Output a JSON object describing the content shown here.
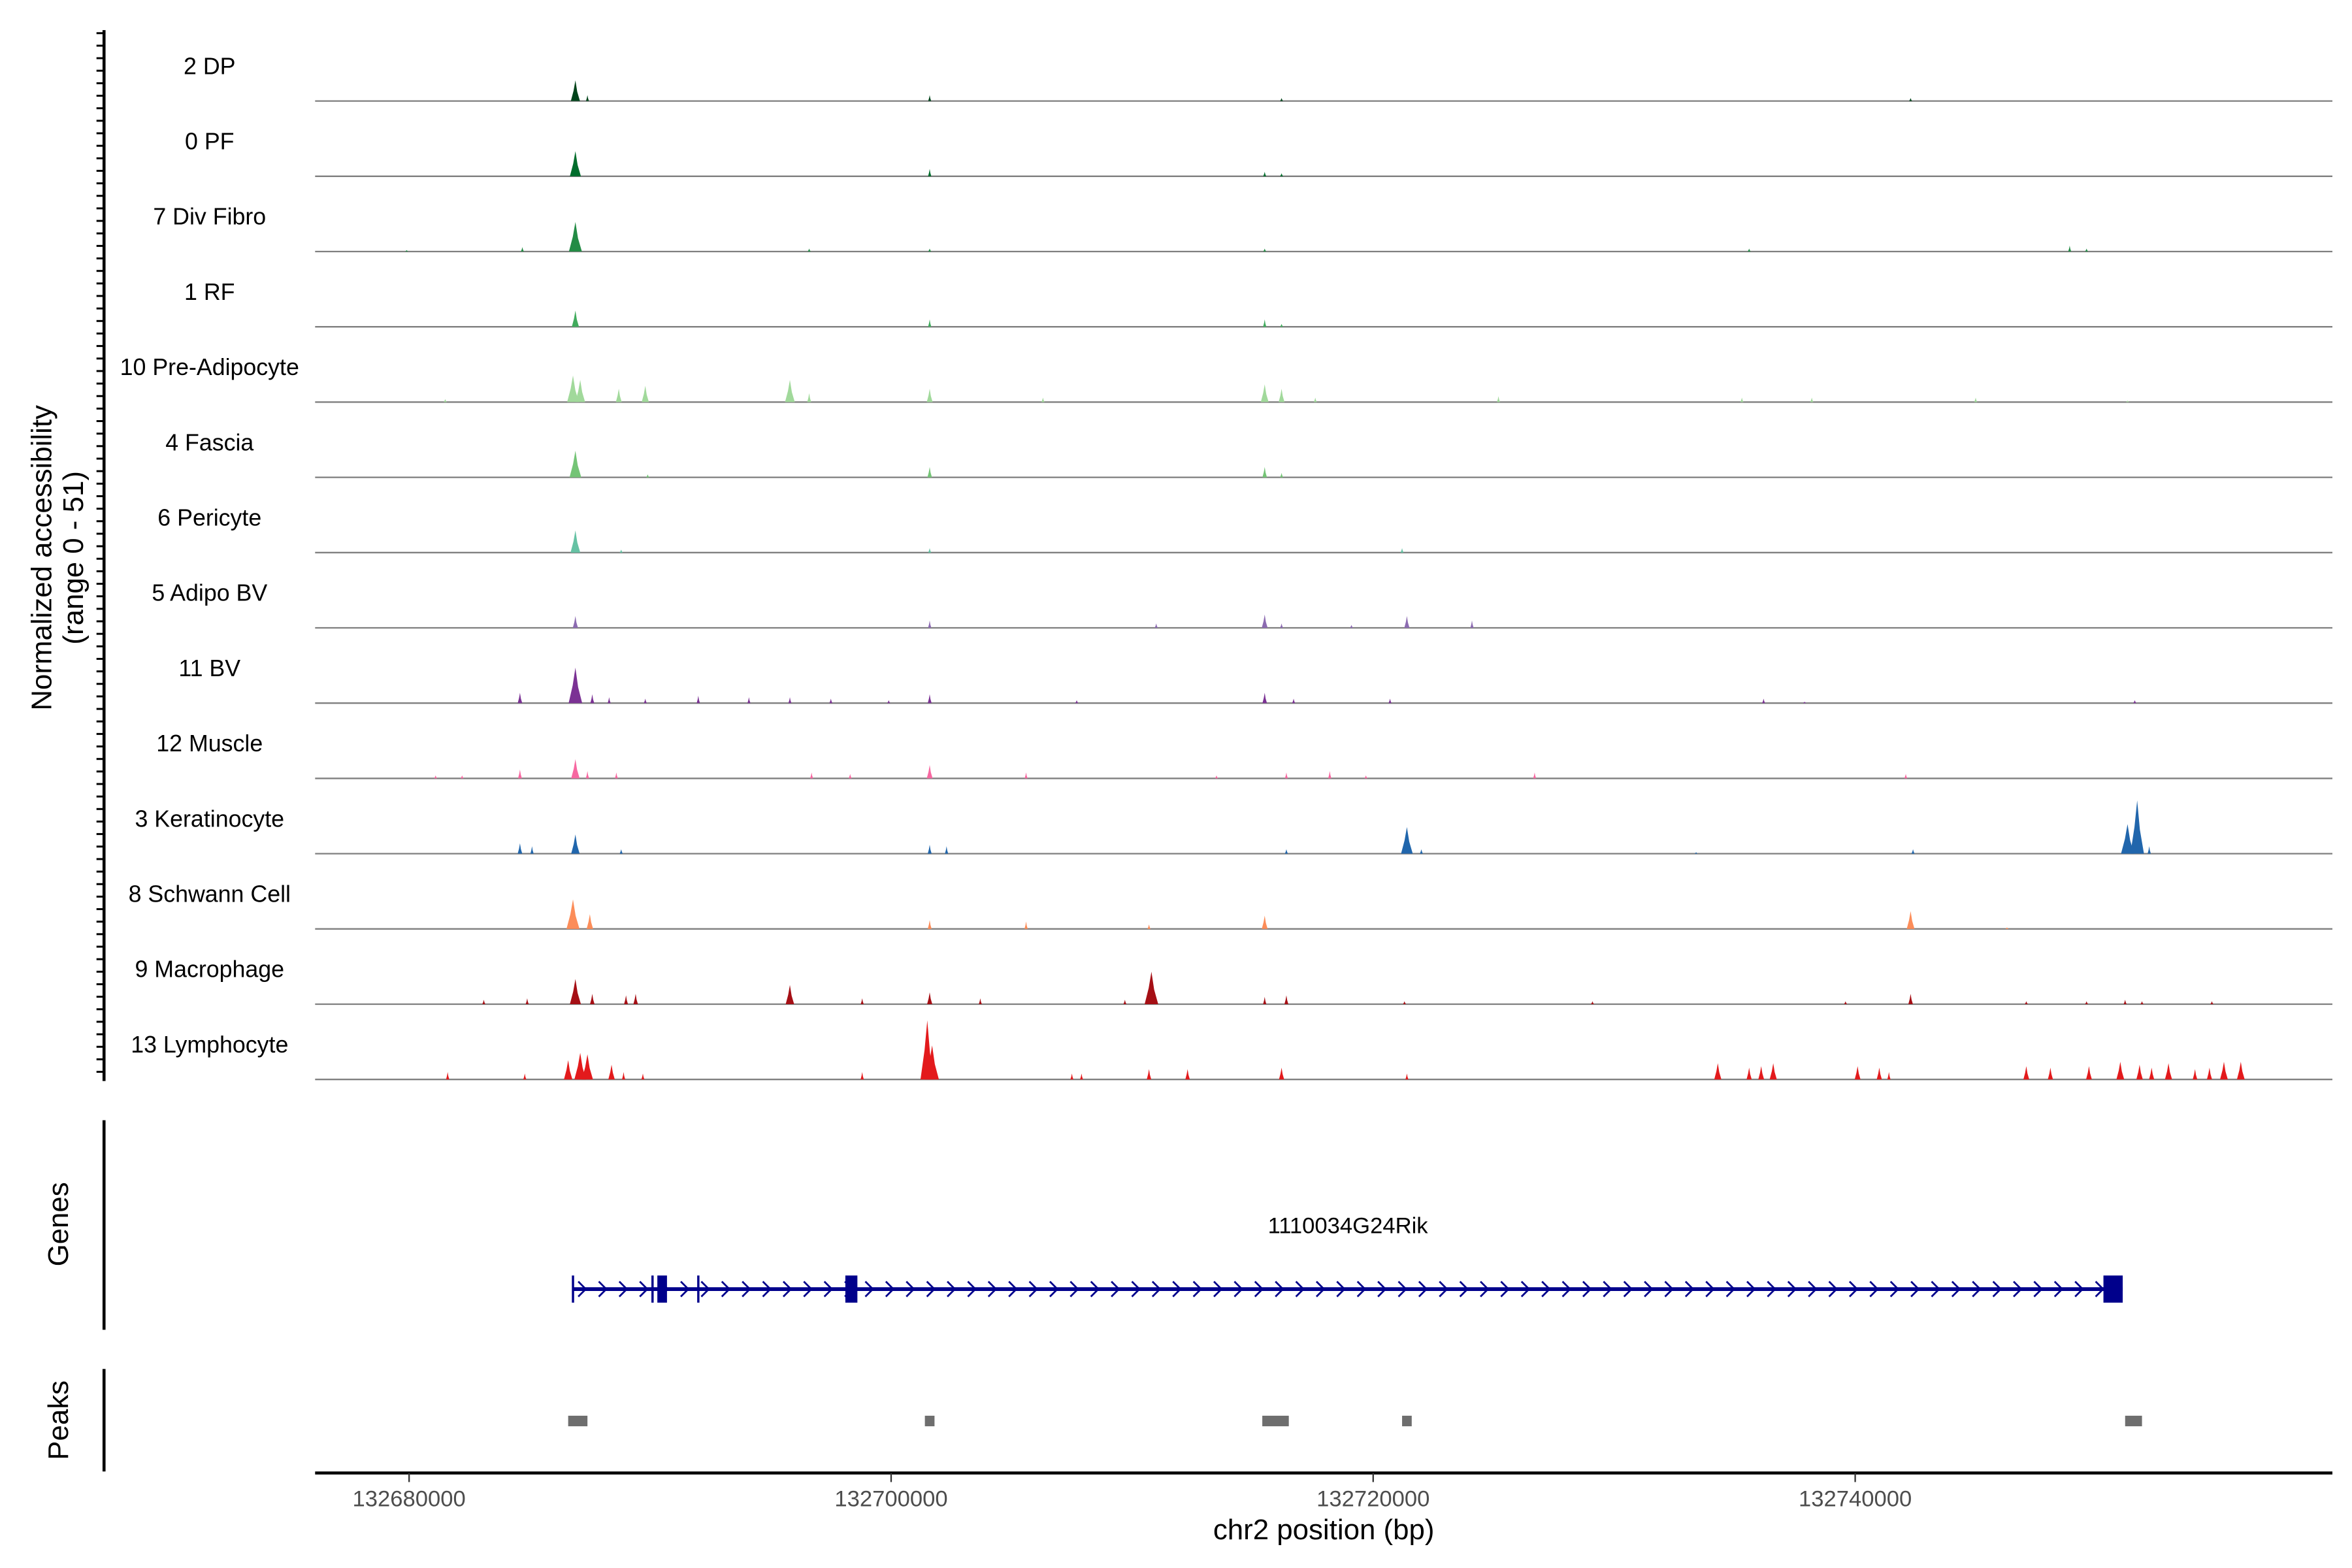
{
  "chart_data": {
    "type": "area",
    "title": "",
    "ylabel": "Normalized accessibility",
    "ylabel_range": "(range 0 - 51)",
    "ylim": [
      0,
      51
    ],
    "xlabel": "chr2 position (bp)",
    "xlim": [
      132676100,
      132759800
    ],
    "xticks": [
      132680000,
      132700000,
      132720000,
      132740000
    ],
    "xtick_labels": [
      "132680000",
      "132700000",
      "132720000",
      "132740000"
    ],
    "tracks": [
      {
        "name": "2 DP",
        "color": "#00441b",
        "peaks": [
          [
            132686900,
            14
          ],
          [
            132687400,
            4
          ],
          [
            132701600,
            4
          ],
          [
            132716200,
            2
          ],
          [
            132742300,
            2
          ]
        ]
      },
      {
        "name": "0 PF",
        "color": "#006d2c",
        "peaks": [
          [
            132686900,
            17
          ],
          [
            132701600,
            5
          ],
          [
            132715500,
            3
          ],
          [
            132716200,
            2
          ]
        ]
      },
      {
        "name": "7 Div Fibro",
        "color": "#238b45",
        "peaks": [
          [
            132679900,
            1
          ],
          [
            132684700,
            3
          ],
          [
            132686900,
            20
          ],
          [
            132696600,
            2
          ],
          [
            132701600,
            2
          ],
          [
            132715500,
            2
          ],
          [
            132735600,
            2
          ],
          [
            132748900,
            4
          ],
          [
            132749600,
            2
          ]
        ]
      },
      {
        "name": "1 RF",
        "color": "#41ab5d",
        "peaks": [
          [
            132686900,
            11
          ],
          [
            132701600,
            5
          ],
          [
            132715500,
            5
          ],
          [
            132716200,
            2
          ]
        ]
      },
      {
        "name": "10 Pre-Adipocyte",
        "color": "#a1d99b",
        "peaks": [
          [
            132681500,
            2
          ],
          [
            132686800,
            18
          ],
          [
            132687100,
            15
          ],
          [
            132688700,
            9
          ],
          [
            132689800,
            11
          ],
          [
            132695800,
            15
          ],
          [
            132696600,
            6
          ],
          [
            132701600,
            9
          ],
          [
            132706300,
            3
          ],
          [
            132715500,
            12
          ],
          [
            132716200,
            9
          ],
          [
            132717600,
            3
          ],
          [
            132725200,
            4
          ],
          [
            132735300,
            3
          ],
          [
            132738200,
            3
          ],
          [
            132745000,
            3
          ],
          [
            132751300,
            1
          ]
        ]
      },
      {
        "name": "4 Fascia",
        "color": "#74c476",
        "peaks": [
          [
            132686900,
            18
          ],
          [
            132689900,
            2
          ],
          [
            132701600,
            7
          ],
          [
            132715500,
            7
          ],
          [
            132716200,
            3
          ]
        ]
      },
      {
        "name": "6 Pericyte",
        "color": "#66c2a4",
        "peaks": [
          [
            132686900,
            15
          ],
          [
            132688800,
            2
          ],
          [
            132701600,
            3
          ],
          [
            132721200,
            3
          ]
        ]
      },
      {
        "name": "5 Adipo BV",
        "color": "#8c6bb1",
        "peaks": [
          [
            132686900,
            8
          ],
          [
            132701600,
            5
          ],
          [
            132711000,
            3
          ],
          [
            132715500,
            9
          ],
          [
            132716200,
            3
          ],
          [
            132719100,
            2
          ],
          [
            132721400,
            8
          ],
          [
            132724100,
            5
          ]
        ]
      },
      {
        "name": "11 BV",
        "color": "#7b3294",
        "peaks": [
          [
            132684600,
            7
          ],
          [
            132686900,
            24
          ],
          [
            132687600,
            6
          ],
          [
            132688300,
            4
          ],
          [
            132689800,
            3
          ],
          [
            132692000,
            5
          ],
          [
            132694100,
            4
          ],
          [
            132695800,
            4
          ],
          [
            132697500,
            3
          ],
          [
            132699900,
            2
          ],
          [
            132701600,
            6
          ],
          [
            132707700,
            2
          ],
          [
            132715500,
            7
          ],
          [
            132716700,
            3
          ],
          [
            132720700,
            3
          ],
          [
            132736200,
            3
          ],
          [
            132737900,
            1
          ],
          [
            132751600,
            2
          ]
        ]
      },
      {
        "name": "12 Muscle",
        "color": "#f768a1",
        "peaks": [
          [
            132681100,
            2
          ],
          [
            132682200,
            2
          ],
          [
            132684600,
            6
          ],
          [
            132686900,
            13
          ],
          [
            132687400,
            5
          ],
          [
            132688600,
            4
          ],
          [
            132696700,
            4
          ],
          [
            132698300,
            3
          ],
          [
            132701600,
            9
          ],
          [
            132705600,
            4
          ],
          [
            132713500,
            2
          ],
          [
            132716400,
            4
          ],
          [
            132718200,
            5
          ],
          [
            132719700,
            2
          ],
          [
            132726700,
            4
          ],
          [
            132742100,
            3
          ]
        ]
      },
      {
        "name": "3 Keratinocyte",
        "color": "#2166ac",
        "peaks": [
          [
            132684600,
            7
          ],
          [
            132685100,
            5
          ],
          [
            132686900,
            13
          ],
          [
            132688800,
            3
          ],
          [
            132701600,
            6
          ],
          [
            132702300,
            5
          ],
          [
            132716400,
            3
          ],
          [
            132721400,
            18
          ],
          [
            132722000,
            3
          ],
          [
            132733400,
            1
          ],
          [
            132742400,
            3
          ],
          [
            132751300,
            20
          ],
          [
            132751700,
            36
          ],
          [
            132752200,
            5
          ]
        ]
      },
      {
        "name": "8 Schwann Cell",
        "color": "#fc8d59",
        "peaks": [
          [
            132686800,
            20
          ],
          [
            132687500,
            10
          ],
          [
            132701600,
            6
          ],
          [
            132705600,
            5
          ],
          [
            132710700,
            3
          ],
          [
            132715500,
            9
          ],
          [
            132742300,
            12
          ],
          [
            132746300,
            1
          ]
        ]
      },
      {
        "name": "9 Macrophage",
        "color": "#a50f15",
        "peaks": [
          [
            132683100,
            3
          ],
          [
            132684900,
            4
          ],
          [
            132686900,
            17
          ],
          [
            132687600,
            7
          ],
          [
            132689000,
            6
          ],
          [
            132689400,
            7
          ],
          [
            132695800,
            13
          ],
          [
            132698800,
            4
          ],
          [
            132701600,
            8
          ],
          [
            132703700,
            4
          ],
          [
            132709700,
            3
          ],
          [
            132710800,
            22
          ],
          [
            132715500,
            5
          ],
          [
            132716400,
            6
          ],
          [
            132721300,
            2
          ],
          [
            132729100,
            2
          ],
          [
            132739600,
            2
          ],
          [
            132742300,
            7
          ],
          [
            132747100,
            2
          ],
          [
            132749600,
            2
          ],
          [
            132751200,
            3
          ],
          [
            132751900,
            2
          ],
          [
            132754800,
            2
          ]
        ]
      },
      {
        "name": "13 Lymphocyte",
        "color": "#e31a1c",
        "peaks": [
          [
            132681600,
            5
          ],
          [
            132684800,
            4
          ],
          [
            132686600,
            13
          ],
          [
            132687100,
            18
          ],
          [
            132687400,
            17
          ],
          [
            132688400,
            10
          ],
          [
            132688900,
            5
          ],
          [
            132689700,
            4
          ],
          [
            132698800,
            5
          ],
          [
            132701500,
            40
          ],
          [
            132701700,
            23
          ],
          [
            132707500,
            4
          ],
          [
            132707900,
            4
          ],
          [
            132710700,
            7
          ],
          [
            132712300,
            7
          ],
          [
            132716200,
            8
          ],
          [
            132721400,
            4
          ],
          [
            132734300,
            11
          ],
          [
            132735600,
            8
          ],
          [
            132736100,
            9
          ],
          [
            132736600,
            11
          ],
          [
            132740100,
            9
          ],
          [
            132741000,
            8
          ],
          [
            132741400,
            5
          ],
          [
            132747100,
            9
          ],
          [
            132748100,
            8
          ],
          [
            132749700,
            9
          ],
          [
            132751000,
            12
          ],
          [
            132751800,
            10
          ],
          [
            132752300,
            8
          ],
          [
            132753000,
            11
          ],
          [
            132754100,
            7
          ],
          [
            132754700,
            8
          ],
          [
            132755300,
            12
          ],
          [
            132756000,
            12
          ]
        ]
      }
    ],
    "genes": {
      "label": "Genes",
      "name": "1110034G24Rik",
      "strand": "+",
      "start": 132686800,
      "end": 132751100,
      "color": "#00008b",
      "exons": [
        [
          132690300,
          132690700
        ],
        [
          132698100,
          132698600
        ],
        [
          132750300,
          132751100
        ]
      ],
      "thin_marks": [
        132686800,
        132690100,
        132692000
      ]
    },
    "peaks_track": {
      "label": "Peaks",
      "color": "#6e6e6e",
      "regions": [
        [
          132686600,
          132687400
        ],
        [
          132701400,
          132701800
        ],
        [
          132715400,
          132716500
        ],
        [
          132721200,
          132721600
        ],
        [
          132751200,
          132751900
        ]
      ]
    }
  }
}
